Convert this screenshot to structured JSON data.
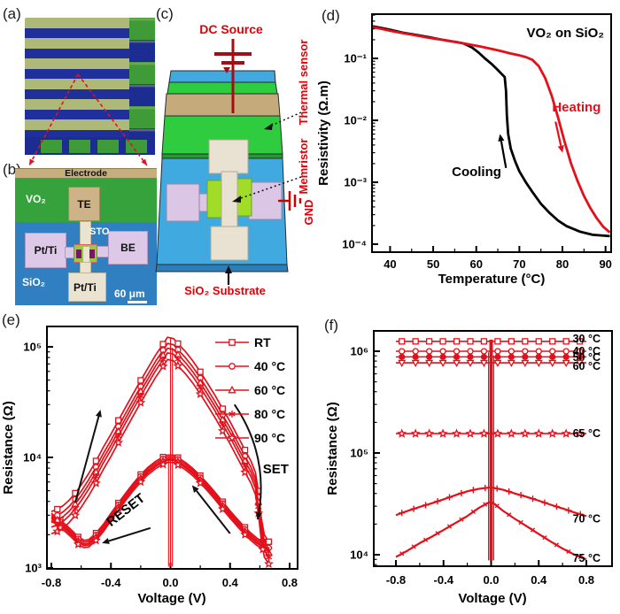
{
  "panels": {
    "a": {
      "label": "(a)"
    },
    "b": {
      "label": "(b)",
      "labels": {
        "electrode": "Electrode",
        "vo2": "VO₂",
        "te": "TE",
        "sto": "STO",
        "ptti_left": "Pt/Ti",
        "be": "BE",
        "sio2": "SiO₂",
        "ptti_bottom": "Pt/Ti",
        "scale": "60 μm"
      }
    },
    "c": {
      "label": "(c)",
      "labels": {
        "dc_source": "DC Source",
        "thermal_sensor": "Thermal sensor",
        "memristor": "Memristor",
        "gnd": "GND",
        "substrate": "SiO₂ Substrate"
      }
    },
    "d": {
      "label": "(d)"
    },
    "e": {
      "label": "(e)"
    },
    "f": {
      "label": "(f)"
    }
  },
  "colors": {
    "curve_red": "#e3101b",
    "black": "#000000",
    "label_red": "#e00007",
    "dark_red": "#a50d12",
    "sage": "#aeb977",
    "navy": "#20309a",
    "chip_green": "#3f9b37",
    "b_blue": "#2f7fc1",
    "b_green": "#35a23c",
    "tan": "#c7ae7e",
    "lavender": "#ddc8e8",
    "cream": "#ebe3d2",
    "c_blue": "#3fa9e0",
    "c_green": "#2ecc3e",
    "lime": "#a0dc28"
  },
  "chart_data": [
    {
      "panel": "d",
      "type": "line",
      "title": "VO₂ on SiO₂",
      "xlabel": "Temperature (°C)",
      "ylabel": "Resistivity (Ω.m)",
      "xlim": [
        35.8,
        91.3
      ],
      "ylim": [
        7.8e-05,
        0.5
      ],
      "xticks": [
        40,
        50,
        60,
        70,
        80,
        90
      ],
      "xtick_labels": [
        "40",
        "50",
        "60",
        "70",
        "80",
        "90"
      ],
      "ytick_exps": [
        -1,
        -2,
        -3,
        -4
      ],
      "ytick_labels": [
        "10⁻¹",
        "10⁻²",
        "10⁻³",
        "10⁻⁴"
      ],
      "series": [
        {
          "name": "Cooling",
          "color": "#000000",
          "points": [
            [
              36,
              0.33
            ],
            [
              38,
              0.31
            ],
            [
              40,
              0.29
            ],
            [
              43,
              0.26
            ],
            [
              46,
              0.24
            ],
            [
              49,
              0.22
            ],
            [
              52,
              0.2
            ],
            [
              55,
              0.185
            ],
            [
              57,
              0.175
            ],
            [
              59,
              0.15
            ],
            [
              60.5,
              0.125
            ],
            [
              62,
              0.1
            ],
            [
              63.5,
              0.082
            ],
            [
              65,
              0.065
            ],
            [
              66,
              0.055
            ],
            [
              66.6,
              0.05
            ],
            [
              66.9,
              0.03
            ],
            [
              67.1,
              0.012
            ],
            [
              67.4,
              0.006
            ],
            [
              68,
              0.0035
            ],
            [
              69,
              0.0022
            ],
            [
              70,
              0.0015
            ],
            [
              71.5,
              0.001
            ],
            [
              73,
              0.0007
            ],
            [
              75,
              0.00045
            ],
            [
              77,
              0.00032
            ],
            [
              79,
              0.00024
            ],
            [
              81,
              0.000195
            ],
            [
              84,
              0.00016
            ],
            [
              87,
              0.000142
            ],
            [
              91,
              0.000135
            ]
          ]
        },
        {
          "name": "Heating",
          "color": "#e3101b",
          "points": [
            [
              36,
              0.32
            ],
            [
              38,
              0.3
            ],
            [
              40,
              0.28
            ],
            [
              43,
              0.255
            ],
            [
              46,
              0.235
            ],
            [
              49,
              0.215
            ],
            [
              52,
              0.2
            ],
            [
              55,
              0.185
            ],
            [
              58,
              0.17
            ],
            [
              61,
              0.155
            ],
            [
              64,
              0.14
            ],
            [
              66,
              0.13
            ],
            [
              68,
              0.12
            ],
            [
              70,
              0.112
            ],
            [
              71.5,
              0.105
            ],
            [
              73,
              0.095
            ],
            [
              74.5,
              0.075
            ],
            [
              76,
              0.048
            ],
            [
              77.5,
              0.025
            ],
            [
              79,
              0.011
            ],
            [
              80.5,
              0.0045
            ],
            [
              82,
              0.002
            ],
            [
              83.5,
              0.00105
            ],
            [
              85,
              0.0006
            ],
            [
              86.5,
              0.00038
            ],
            [
              88,
              0.00026
            ],
            [
              89.5,
              0.00019
            ],
            [
              91,
              0.000155
            ]
          ]
        }
      ],
      "annotations": [
        {
          "text": "Heating",
          "x": 77.6,
          "y": 0.014,
          "color": "#e3101b",
          "anchor": "start"
        },
        {
          "text": "Cooling",
          "x": 65.8,
          "y": 0.00125,
          "color": "#000000",
          "anchor": "end"
        }
      ],
      "arrows": [
        {
          "x1": 78.4,
          "y1": 0.0095,
          "x2": 80.0,
          "y2": 0.003,
          "color": "#e3101b"
        },
        {
          "x1": 66.9,
          "y1": 0.0017,
          "x2": 65.5,
          "y2": 0.006,
          "color": "#000000"
        }
      ]
    },
    {
      "panel": "e",
      "type": "line",
      "xlabel": "Voltage (V)",
      "ylabel": "Resistance (Ω)",
      "xlim": [
        -0.83,
        0.854
      ],
      "ylim": [
        1000,
        153000
      ],
      "xticks": [
        -0.8,
        -0.4,
        0,
        0.4,
        0.8
      ],
      "xtick_labels": [
        "-0.8",
        "-0.4",
        "0.0",
        "0.4",
        "0.8"
      ],
      "ytick_exps": [
        3,
        4,
        5
      ],
      "ytick_labels": [
        "10³",
        "10⁴",
        "10⁵"
      ],
      "color": "#e3101b",
      "loop": {
        "upper_left": [
          [
            -0.8,
            3000
          ],
          [
            -0.76,
            3150
          ],
          [
            -0.72,
            3400
          ],
          [
            -0.68,
            3800
          ],
          [
            -0.64,
            4400
          ],
          [
            -0.6,
            5200
          ],
          [
            -0.55,
            6600
          ],
          [
            -0.5,
            8600
          ],
          [
            -0.45,
            11500
          ],
          [
            -0.4,
            15000
          ],
          [
            -0.35,
            20000
          ],
          [
            -0.3,
            26500
          ],
          [
            -0.25,
            35000
          ],
          [
            -0.2,
            46000
          ],
          [
            -0.15,
            60000
          ],
          [
            -0.1,
            78000
          ],
          [
            -0.05,
            98000
          ],
          [
            -0.02,
            113000
          ]
        ],
        "upper_right": [
          [
            0.02,
            110000
          ],
          [
            0.05,
            99000
          ],
          [
            0.1,
            84000
          ],
          [
            0.15,
            69000
          ],
          [
            0.2,
            55000
          ],
          [
            0.25,
            43000
          ],
          [
            0.3,
            33500
          ],
          [
            0.35,
            25500
          ],
          [
            0.4,
            19500
          ],
          [
            0.45,
            14500
          ],
          [
            0.5,
            10800
          ],
          [
            0.54,
            8600
          ],
          [
            0.57,
            6800
          ],
          [
            0.59,
            4600
          ],
          [
            0.61,
            2600
          ],
          [
            0.63,
            1850
          ],
          [
            0.66,
            1600
          ]
        ],
        "lower_right": [
          [
            0.66,
            1550
          ],
          [
            0.62,
            1620
          ],
          [
            0.58,
            1760
          ],
          [
            0.54,
            1950
          ],
          [
            0.5,
            2200
          ],
          [
            0.45,
            2600
          ],
          [
            0.4,
            3100
          ],
          [
            0.35,
            3750
          ],
          [
            0.3,
            4550
          ],
          [
            0.25,
            5450
          ],
          [
            0.2,
            6450
          ],
          [
            0.15,
            7500
          ],
          [
            0.1,
            8500
          ],
          [
            0.05,
            9400
          ],
          [
            0.02,
            9900
          ]
        ],
        "lower_left": [
          [
            -0.02,
            9900
          ],
          [
            -0.05,
            9500
          ],
          [
            -0.1,
            8700
          ],
          [
            -0.15,
            7700
          ],
          [
            -0.2,
            6600
          ],
          [
            -0.25,
            5500
          ],
          [
            -0.3,
            4500
          ],
          [
            -0.35,
            3650
          ],
          [
            -0.4,
            2950
          ],
          [
            -0.45,
            2350
          ],
          [
            -0.5,
            1950
          ],
          [
            -0.55,
            1700
          ],
          [
            -0.58,
            1680
          ],
          [
            -0.62,
            1800
          ],
          [
            -0.66,
            2050
          ],
          [
            -0.7,
            2300
          ],
          [
            -0.74,
            2550
          ],
          [
            -0.78,
            2800
          ],
          [
            -0.8,
            2950
          ]
        ]
      },
      "series": [
        {
          "name": "RT",
          "marker": "square",
          "scale_upper": 1.08,
          "scale_lower": 1.06
        },
        {
          "name": "40 °C",
          "marker": "circle",
          "scale_upper": 0.95,
          "scale_lower": 1.02
        },
        {
          "name": "60 °C",
          "marker": "triangle",
          "scale_upper": 0.86,
          "scale_lower": 0.98
        },
        {
          "name": "80 °C",
          "marker": "asterisk",
          "scale_upper": 0.78,
          "scale_lower": 0.95
        },
        {
          "name": "90 °C",
          "marker": "star",
          "scale_upper": 0.68,
          "scale_lower": 0.91
        }
      ],
      "zero_spikes": [
        {
          "x": -0.013,
          "r1": 1030,
          "r2": 10200
        },
        {
          "x": 0.0,
          "r1": 1030,
          "r2": 120000
        },
        {
          "x": 0.013,
          "r1": 1030,
          "r2": 98000
        }
      ],
      "annotations": [
        {
          "text": "SET",
          "x": 0.62,
          "y": 7200,
          "rotate": 0,
          "anchor": "start",
          "color": "#000000"
        },
        {
          "text": "RESET",
          "x": -0.4,
          "y": 2350,
          "rotate": -38,
          "anchor": "start",
          "color": "#000000"
        }
      ],
      "arrows": [
        {
          "x1": -0.64,
          "y1": 3900,
          "x2": -0.47,
          "y2": 27000
        },
        {
          "x1": 0.4,
          "y1": 2050,
          "x2": 0.145,
          "y2": 5600
        },
        {
          "x1": -0.135,
          "y1": 2300,
          "x2": -0.46,
          "y2": 1680
        }
      ],
      "curved_arrow": {
        "x1": 0.43,
        "y1": 30000,
        "cx": 0.67,
        "cy": 10000,
        "x2": 0.585,
        "y2": 2750
      }
    },
    {
      "panel": "f",
      "type": "line",
      "xlabel": "Voltage (V)",
      "ylabel": "Resistance (Ω)",
      "xlim": [
        -0.986,
        1.016
      ],
      "ylim": [
        7700,
        1580000
      ],
      "xticks": [
        -0.8,
        -0.4,
        0,
        0.4,
        0.8
      ],
      "xtick_labels": [
        "-0.8",
        "-0.4",
        "0.0",
        "0.4",
        "0.8"
      ],
      "ytick_exps": [
        4,
        5,
        6
      ],
      "ytick_labels": [
        "10⁴",
        "10⁵",
        "10⁶"
      ],
      "color": "#e3101b",
      "label_v": 0.685,
      "series": [
        {
          "name": "30 °C",
          "marker": "square",
          "flat": 1250000,
          "label_r": 1320000
        },
        {
          "name": "40 °C",
          "marker": "circle",
          "flat": 1000000,
          "label_r": 1000000
        },
        {
          "name": "50 °C",
          "marker": "circle-filled",
          "flat": 880000,
          "label_r": 870000
        },
        {
          "name": "60 °C",
          "marker": "triangle-down",
          "flat": 770000,
          "label_r": 710000
        },
        {
          "name": "65 °C",
          "marker": "star",
          "flat": 155000,
          "label_r": 155000
        },
        {
          "name": "70 °C",
          "marker": "plus",
          "label_r": 22500,
          "points": [
            [
              -0.8,
              24500
            ],
            [
              -0.7,
              27000
            ],
            [
              -0.6,
              29500
            ],
            [
              -0.5,
              32000
            ],
            [
              -0.4,
              35000
            ],
            [
              -0.3,
              38500
            ],
            [
              -0.2,
              42000
            ],
            [
              -0.1,
              44500
            ],
            [
              0,
              46000
            ],
            [
              0.1,
              43500
            ],
            [
              0.2,
              40000
            ],
            [
              0.3,
              37000
            ],
            [
              0.4,
              34000
            ],
            [
              0.5,
              31000
            ],
            [
              0.6,
              28500
            ],
            [
              0.7,
              26000
            ],
            [
              0.8,
              24000
            ]
          ]
        },
        {
          "name": "75 °C",
          "marker": "x",
          "label_r": 9200,
          "points": [
            [
              -0.8,
              9500
            ],
            [
              -0.7,
              11000
            ],
            [
              -0.6,
              13000
            ],
            [
              -0.5,
              15000
            ],
            [
              -0.4,
              17500
            ],
            [
              -0.3,
              20500
            ],
            [
              -0.2,
              24000
            ],
            [
              -0.1,
              29000
            ],
            [
              0,
              33500
            ],
            [
              0.1,
              27000
            ],
            [
              0.2,
              22500
            ],
            [
              0.3,
              19000
            ],
            [
              0.4,
              16000
            ],
            [
              0.5,
              13500
            ],
            [
              0.6,
              11500
            ],
            [
              0.7,
              10000
            ],
            [
              0.8,
              9000
            ]
          ]
        }
      ],
      "spike": {
        "x": 0,
        "r1": 8800,
        "r2": 1300000
      }
    }
  ]
}
